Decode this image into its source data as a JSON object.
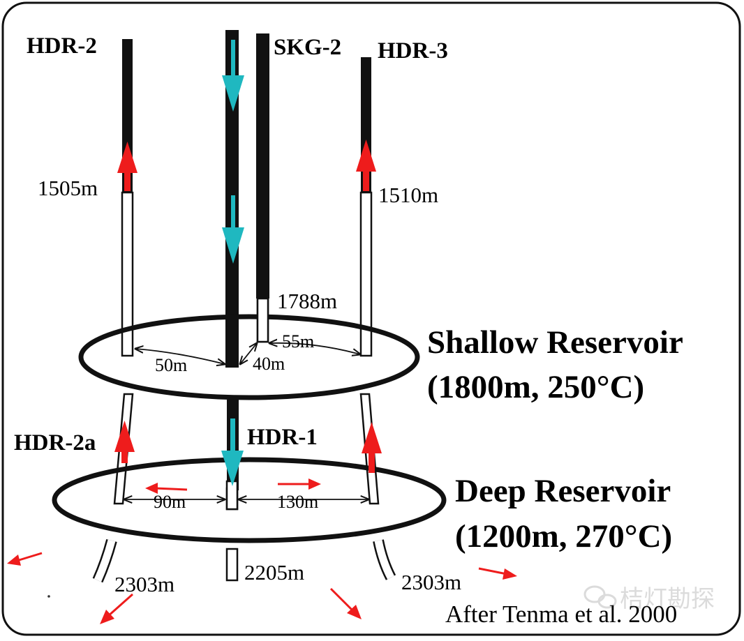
{
  "wells": {
    "hdr2": "HDR-2",
    "skg2": "SKG-2",
    "hdr3": "HDR-3",
    "hdr2a": "HDR-2a",
    "hdr1": "HDR-1"
  },
  "depths": {
    "hdr2_casing": "1505m",
    "hdr3_casing": "1510m",
    "skg2_casing": "1788m",
    "hdr2a_bottom": "2303m",
    "hdr1_bottom": "2205m",
    "hdr3_bottom": "2303m"
  },
  "distances": {
    "shallow_hdr2_hdr1": "50m",
    "shallow_hdr1_skg2": "40m",
    "shallow_skg2_hdr3": "55m",
    "deep_hdr2a_hdr1": "90m",
    "deep_hdr1_hdr3": "130m"
  },
  "reservoirs": {
    "shallow_name": "Shallow Reservoir",
    "shallow_params": "(1800m, 250°C)",
    "deep_name": "Deep Reservoir",
    "deep_params": "(1200m, 270°C)"
  },
  "credit": "After Tenma et al. 2000",
  "watermark": "桔灯勘探",
  "colors": {
    "production_arrow": "#ee1c1c",
    "injection_arrow": "#1fb8c0",
    "casing": "#111111",
    "frame": "#111111"
  }
}
